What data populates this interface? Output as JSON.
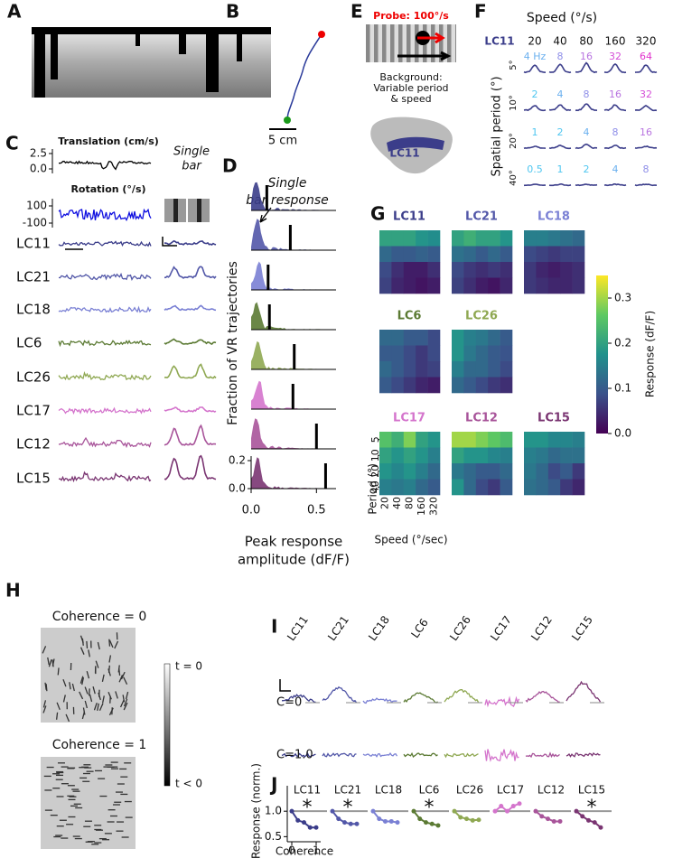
{
  "panels": {
    "A": {
      "label": "A"
    },
    "B": {
      "label": "B",
      "scale_bar": "5 cm"
    },
    "C": {
      "label": "C",
      "translation": {
        "title": "Translation (cm/s)",
        "ticks": [
          2.5,
          {
            "value": 0,
            "label": "0.0"
          }
        ]
      },
      "rotation": {
        "title": "Rotation (°/s)",
        "ticks": [
          100,
          -100
        ]
      },
      "single_bar": [
        "Single",
        "bar"
      ],
      "cell_types": [
        {
          "name": "LC11",
          "color": "#3b3d8a"
        },
        {
          "name": "LC21",
          "color": "#5257a8"
        },
        {
          "name": "LC18",
          "color": "#7a80d4"
        },
        {
          "name": "LC6",
          "color": "#5b7a33"
        },
        {
          "name": "LC26",
          "color": "#8fa852"
        },
        {
          "name": "LC17",
          "color": "#d474cc"
        },
        {
          "name": "LC12",
          "color": "#a8549a"
        },
        {
          "name": "LC15",
          "color": "#7a3572"
        }
      ]
    },
    "D": {
      "label": "D",
      "annotation": [
        "Single",
        "bar response"
      ],
      "ylabel": "Fraction of VR trajectories",
      "xlabel": [
        "Peak response",
        "amplitude (dF/F)"
      ],
      "xlim": [
        0,
        0.65
      ],
      "xticks": [
        {
          "value": 0,
          "label": "0.0"
        },
        0.5
      ],
      "ylim": [
        0,
        0.2
      ],
      "yticks": [
        {
          "value": 0,
          "label": "0.0"
        },
        0.2
      ],
      "single_bar_values": [
        0.12,
        0.3,
        0.13,
        0.14,
        0.33,
        0.32,
        0.5,
        0.57
      ]
    },
    "E": {
      "label": "E",
      "probe": "Probe: 100°/s",
      "background": [
        "Background:",
        "Variable period",
        "& speed"
      ],
      "cell": "LC11"
    },
    "F": {
      "label": "F",
      "title": "Speed (°/s)",
      "cell": "LC11",
      "speeds": [
        20,
        40,
        80,
        160,
        320
      ],
      "ylabel": "Spatial period (°)",
      "periods": [
        "5°",
        "10°",
        "20°",
        "40°"
      ],
      "frequencies": [
        [
          "4 Hz",
          "8",
          "16",
          "32",
          "64"
        ],
        [
          "2",
          "4",
          "8",
          "16",
          "32"
        ],
        [
          "1",
          "2",
          "4",
          "8",
          "16"
        ],
        [
          "0.5",
          "1",
          "2",
          "4",
          "8"
        ]
      ]
    },
    "G": {
      "label": "G",
      "colorbar": {
        "label": "Response (dF/F)",
        "lim": [
          0,
          0.35
        ],
        "ticks": [
          {
            "value": 0,
            "label": "0.0"
          },
          0.1,
          0.2,
          0.3
        ]
      },
      "ylabel": "Period (°)",
      "xlabel": "Speed (°/sec)",
      "periods": [
        5,
        10,
        20,
        40
      ],
      "speeds": [
        20,
        40,
        80,
        160,
        320
      ],
      "maps": [
        {
          "name": "LC11",
          "color": "#3b3d8a",
          "values": [
            [
              0.2,
              0.2,
              0.2,
              0.18,
              0.17
            ],
            [
              0.12,
              0.1,
              0.1,
              0.11,
              0.1
            ],
            [
              0.08,
              0.05,
              0.03,
              0.03,
              0.05
            ],
            [
              0.07,
              0.04,
              0.03,
              0.02,
              0.03
            ]
          ]
        },
        {
          "name": "LC21",
          "color": "#5257a8",
          "values": [
            [
              0.2,
              0.22,
              0.2,
              0.2,
              0.18
            ],
            [
              0.13,
              0.12,
              0.1,
              0.12,
              0.1
            ],
            [
              0.08,
              0.06,
              0.05,
              0.06,
              0.05
            ],
            [
              0.07,
              0.05,
              0.03,
              0.02,
              0.04
            ]
          ]
        },
        {
          "name": "LC18",
          "color": "#7a80d4",
          "values": [
            [
              0.15,
              0.15,
              0.14,
              0.13,
              0.12
            ],
            [
              0.08,
              0.07,
              0.06,
              0.07,
              0.07
            ],
            [
              0.06,
              0.04,
              0.03,
              0.04,
              0.05
            ],
            [
              0.06,
              0.05,
              0.04,
              0.04,
              0.05
            ]
          ]
        },
        {
          "name": "LC6",
          "color": "#5b7a33",
          "values": [
            [
              0.12,
              0.12,
              0.1,
              0.1,
              0.08
            ],
            [
              0.1,
              0.1,
              0.08,
              0.06,
              0.08
            ],
            [
              0.12,
              0.1,
              0.08,
              0.06,
              0.07
            ],
            [
              0.1,
              0.08,
              0.06,
              0.04,
              0.03
            ]
          ]
        },
        {
          "name": "LC26",
          "color": "#8fa852",
          "values": [
            [
              0.18,
              0.15,
              0.14,
              0.12,
              0.1
            ],
            [
              0.18,
              0.14,
              0.12,
              0.1,
              0.09
            ],
            [
              0.15,
              0.12,
              0.12,
              0.1,
              0.08
            ],
            [
              0.12,
              0.1,
              0.08,
              0.06,
              0.05
            ]
          ]
        },
        {
          "name": "LC17",
          "color": "#d474cc",
          "values": [
            [
              0.25,
              0.22,
              0.28,
              0.2,
              0.18
            ],
            [
              0.2,
              0.18,
              0.2,
              0.18,
              0.15
            ],
            [
              0.18,
              0.16,
              0.18,
              0.15,
              0.12
            ],
            [
              0.15,
              0.14,
              0.15,
              0.12,
              0.1
            ]
          ]
        },
        {
          "name": "LC12",
          "color": "#a8549a",
          "values": [
            [
              0.3,
              0.3,
              0.28,
              0.26,
              0.24
            ],
            [
              0.2,
              0.18,
              0.18,
              0.16,
              0.15
            ],
            [
              0.14,
              0.12,
              0.1,
              0.1,
              0.12
            ],
            [
              0.18,
              0.12,
              0.08,
              0.06,
              0.1
            ]
          ]
        },
        {
          "name": "LC15",
          "color": "#7a3572",
          "values": [
            [
              0.18,
              0.18,
              0.16,
              0.16,
              0.15
            ],
            [
              0.15,
              0.14,
              0.12,
              0.13,
              0.13
            ],
            [
              0.14,
              0.12,
              0.08,
              0.1,
              0.06
            ],
            [
              0.13,
              0.12,
              0.1,
              0.06,
              0.04
            ]
          ]
        }
      ]
    },
    "H": {
      "label": "H",
      "titles": [
        "Coherence = 0",
        "Coherence = 1"
      ],
      "colorbar": [
        "t = 0",
        "t < 0"
      ]
    },
    "I": {
      "label": "I",
      "cell_types": [
        "LC11",
        "LC21",
        "LC18",
        "LC6",
        "LC26",
        "LC17",
        "LC12",
        "LC15"
      ],
      "rows": [
        "C=0",
        "C=1.0"
      ]
    },
    "J": {
      "label": "J",
      "ylabel": "Response (norm.)",
      "xlabel": "Coherence",
      "xlim": [
        0,
        1
      ],
      "ylim": [
        0.4,
        1.5
      ],
      "xticks": [
        0,
        1
      ],
      "yticks": [
        0.5,
        {
          "value": 1,
          "label": "1.0"
        }
      ],
      "x": [
        0,
        0.25,
        0.5,
        0.75,
        1
      ],
      "groups": [
        {
          "name": "LC11",
          "color": "#3b3d8a",
          "values": [
            1,
            0.82,
            0.78,
            0.68,
            0.68
          ],
          "marker": "*"
        },
        {
          "name": "LC21",
          "color": "#5257a8",
          "values": [
            1,
            0.85,
            0.78,
            0.75,
            0.75
          ],
          "marker": "*"
        },
        {
          "name": "LC18",
          "color": "#7a80d4",
          "values": [
            1,
            0.85,
            0.8,
            0.8,
            0.78
          ]
        },
        {
          "name": "LC6",
          "color": "#5b7a33",
          "values": [
            1,
            0.85,
            0.78,
            0.75,
            0.72
          ],
          "marker": "*"
        },
        {
          "name": "LC26",
          "color": "#8fa852",
          "values": [
            1,
            0.88,
            0.85,
            0.82,
            0.83
          ]
        },
        {
          "name": "LC17",
          "color": "#d474cc",
          "values": [
            1,
            1.1,
            1,
            1.1,
            1.15
          ]
        },
        {
          "name": "LC12",
          "color": "#a8549a",
          "values": [
            1,
            0.9,
            0.85,
            0.8,
            0.8
          ]
        },
        {
          "name": "LC15",
          "color": "#7a3572",
          "values": [
            1,
            0.9,
            0.82,
            0.78,
            0.68
          ],
          "marker": "*"
        }
      ]
    }
  }
}
